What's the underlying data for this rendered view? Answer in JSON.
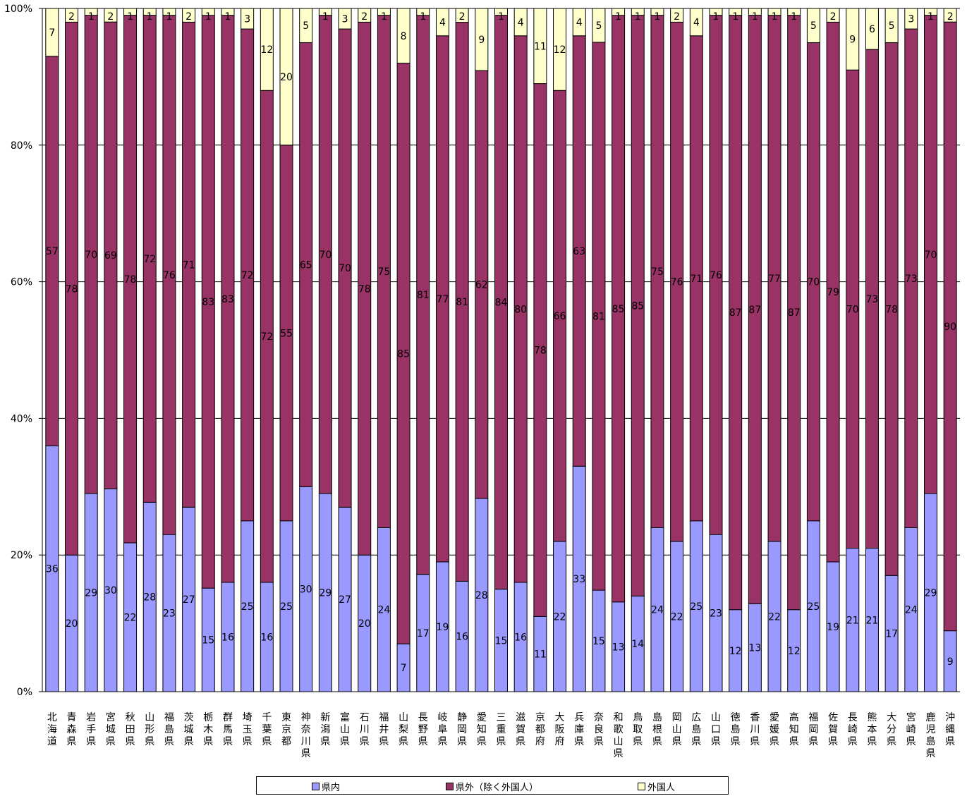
{
  "chart_data": {
    "type": "bar",
    "stacked": true,
    "percent_axis": true,
    "ylim": [
      0,
      100
    ],
    "yticks": [
      "0%",
      "20%",
      "40%",
      "60%",
      "80%",
      "100%"
    ],
    "grid": true,
    "legend_position": "bottom",
    "title": "",
    "xlabel": "",
    "ylabel": "",
    "categories": [
      "北海道",
      "青森県",
      "岩手県",
      "宮城県",
      "秋田県",
      "山形県",
      "福島県",
      "茨城県",
      "栃木県",
      "群馬県",
      "埼玉県",
      "千葉県",
      "東京都",
      "神奈川県",
      "新潟県",
      "富山県",
      "石川県",
      "福井県",
      "山梨県",
      "長野県",
      "岐阜県",
      "静岡県",
      "愛知県",
      "三重県",
      "滋賀県",
      "京都府",
      "大阪府",
      "兵庫県",
      "奈良県",
      "和歌山県",
      "鳥取県",
      "島根県",
      "岡山県",
      "広島県",
      "山口県",
      "徳島県",
      "香川県",
      "愛媛県",
      "高知県",
      "福岡県",
      "佐賀県",
      "長崎県",
      "熊本県",
      "大分県",
      "宮崎県",
      "鹿児島県",
      "沖縄県"
    ],
    "series": [
      {
        "name": "県内",
        "color": "#9999ff",
        "values": [
          36,
          20,
          29,
          30,
          22,
          28,
          23,
          27,
          15,
          16,
          25,
          16,
          25,
          30,
          29,
          27,
          20,
          24,
          7,
          17,
          19,
          16,
          28,
          15,
          16,
          11,
          22,
          33,
          15,
          13,
          14,
          24,
          22,
          25,
          23,
          12,
          13,
          22,
          12,
          25,
          19,
          21,
          21,
          17,
          24,
          29,
          9
        ]
      },
      {
        "name": "県外（除く外国人）",
        "color": "#993366",
        "values": [
          57,
          78,
          70,
          69,
          78,
          72,
          76,
          71,
          83,
          83,
          72,
          72,
          55,
          65,
          70,
          70,
          78,
          75,
          85,
          81,
          77,
          81,
          62,
          84,
          80,
          78,
          66,
          63,
          81,
          85,
          85,
          75,
          76,
          71,
          76,
          87,
          87,
          77,
          87,
          70,
          79,
          70,
          73,
          78,
          73,
          70,
          90
        ]
      },
      {
        "name": "外国人",
        "color": "#ffffcc",
        "values": [
          7,
          2,
          1,
          2,
          1,
          1,
          1,
          2,
          1,
          1,
          3,
          12,
          20,
          5,
          1,
          3,
          2,
          1,
          8,
          1,
          4,
          2,
          9,
          1,
          4,
          11,
          12,
          4,
          5,
          1,
          1,
          1,
          2,
          4,
          1,
          1,
          1,
          1,
          1,
          5,
          2,
          9,
          6,
          5,
          3,
          1,
          2
        ]
      }
    ]
  }
}
